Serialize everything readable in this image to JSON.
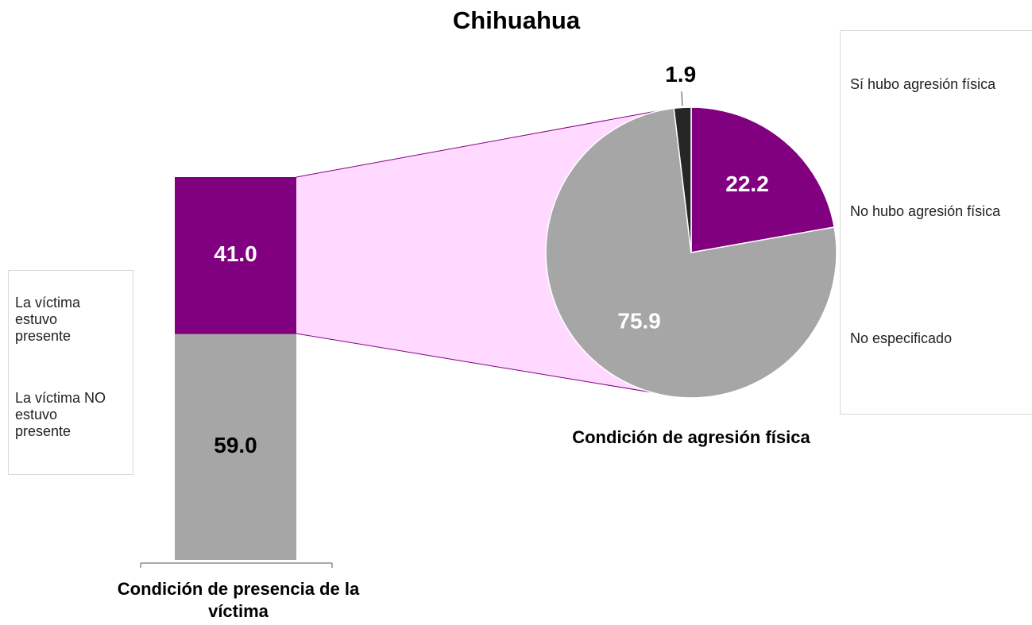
{
  "title": "Chihuahua",
  "chart_data": [
    {
      "type": "bar",
      "stacked": true,
      "xlabel": "Condición de presencia de la víctima",
      "series": [
        {
          "name": "La víctima estuvo presente",
          "color": "#800080",
          "values": [
            41.0
          ],
          "value_labels": [
            "41.0"
          ]
        },
        {
          "name": "La víctima NO estuvo presente",
          "color": "#a6a6a6",
          "values": [
            59.0
          ],
          "value_labels": [
            "59.0"
          ]
        }
      ]
    },
    {
      "type": "pie",
      "xlabel": "Condición de agresión física",
      "categories": [
        "Sí hubo agresión física",
        "No hubo agresión física",
        "No especificado"
      ],
      "values": [
        22.2,
        75.9,
        1.9
      ],
      "colors": [
        "#800080",
        "#a6a6a6",
        "#262626"
      ]
    }
  ]
}
